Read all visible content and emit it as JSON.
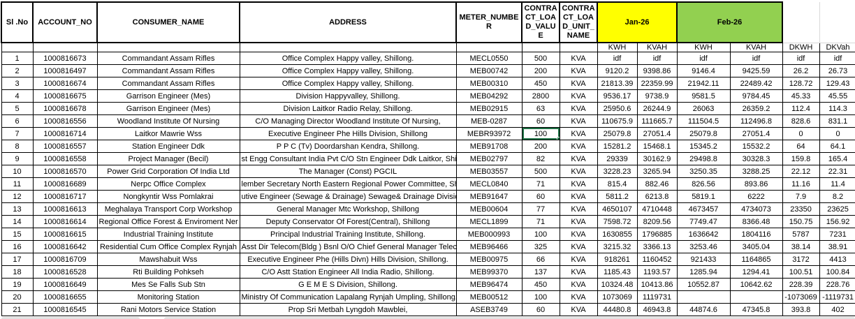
{
  "colors": {
    "jan_header_bg": "#FFFF00",
    "feb_header_bg": "#92D050",
    "selection_border": "#1E7145"
  },
  "selection": {
    "row_sl": "7",
    "field": "load"
  },
  "table": {
    "headers": {
      "sl_no": "Sl .No",
      "account_no": "ACCOUNT_NO",
      "consumer_name": "CONSUMER_NAME",
      "address": "ADDRESS",
      "meter_number": "METER_NUMBER",
      "contract_load_value": "CONTRACT_LOAD_VALUE",
      "contract_load_unit_name": "CONTRACT_LOAD_UNIT_NAME",
      "jan": "Jan-26",
      "feb": "Feb-26"
    },
    "subheaders": [
      "KWH",
      "KVAH",
      "KWH",
      "KVAH",
      "DKWH",
      "DKVah"
    ],
    "rows": [
      {
        "sl": "1",
        "account": "1000816673",
        "consumer": "Commandant Assam Rifles",
        "address": "Office Complex Happy valley, Shillong.",
        "meter": "MECL0550",
        "load": "500",
        "unit": "KVA",
        "jan_kwh": "idf",
        "jan_kvah": "idf",
        "feb_kwh": "idf",
        "feb_kvah": "idf",
        "dkwh": "idf",
        "dkvah": "idf"
      },
      {
        "sl": "2",
        "account": "1000816497",
        "consumer": "Commandant Assam Rifles",
        "address": "Office Complex Happy valley, Shillong.",
        "meter": "MEB00742",
        "load": "200",
        "unit": "KVA",
        "jan_kwh": "9120.2",
        "jan_kvah": "9398.86",
        "feb_kwh": "9146.4",
        "feb_kvah": "9425.59",
        "dkwh": "26.2",
        "dkvah": "26.73"
      },
      {
        "sl": "3",
        "account": "1000816674",
        "consumer": "Commandant Assam Rifles",
        "address": "Office Complex Happy valley, Shillong.",
        "meter": "MEB00310",
        "load": "450",
        "unit": "KVA",
        "jan_kwh": "21813.39",
        "jan_kvah": "22359.99",
        "feb_kwh": "21942.11",
        "feb_kvah": "22489.42",
        "dkwh": "128.72",
        "dkvah": "129.43"
      },
      {
        "sl": "4",
        "account": "1000816675",
        "consumer": "Garrison Engineer (Mes)",
        "address": "Division Happyvalley, Shillong.",
        "meter": "MEB04292",
        "load": "2800",
        "unit": "KVA",
        "jan_kwh": "9536.17",
        "jan_kvah": "9738.9",
        "feb_kwh": "9581.5",
        "feb_kvah": "9784.45",
        "dkwh": "45.33",
        "dkvah": "45.55"
      },
      {
        "sl": "5",
        "account": "1000816678",
        "consumer": "Garrison Engineer (Mes)",
        "address": "Division Laitkor Radio Relay, Shillong.",
        "meter": "MEB02915",
        "load": "63",
        "unit": "KVA",
        "jan_kwh": "25950.6",
        "jan_kvah": "26244.9",
        "feb_kwh": "26063",
        "feb_kvah": "26359.2",
        "dkwh": "112.4",
        "dkvah": "114.3"
      },
      {
        "sl": "6",
        "account": "1000816556",
        "consumer": "Woodland Institute Of Nursing",
        "address": "C/O Managing Director Woodland Institute Of Nursing,",
        "meter": "MEB-0287",
        "load": "60",
        "unit": "KVA",
        "jan_kwh": "110675.9",
        "jan_kvah": "111665.7",
        "feb_kwh": "111504.5",
        "feb_kvah": "112496.8",
        "dkwh": "828.6",
        "dkvah": "831.1"
      },
      {
        "sl": "7",
        "account": "1000816714",
        "consumer": "Laitkor Mawrie Wss",
        "address": "Executive Engineer Phe Hills Division, Shillong",
        "meter": "MEBR93972",
        "load": "100",
        "unit": "KVA",
        "jan_kwh": "25079.8",
        "jan_kvah": "27051.4",
        "feb_kwh": "25079.8",
        "feb_kvah": "27051.4",
        "dkwh": "0",
        "dkvah": "0"
      },
      {
        "sl": "8",
        "account": "1000816557",
        "consumer": "Station Engineer Ddk",
        "address": "P P C (Tv) Doordarshan Kendra, Shillong.",
        "meter": "MEB91708",
        "load": "200",
        "unit": "KVA",
        "jan_kwh": "15281.2",
        "jan_kvah": "15468.1",
        "feb_kwh": "15345.2",
        "feb_kvah": "15532.2",
        "dkwh": "64",
        "dkvah": "64.1"
      },
      {
        "sl": "9",
        "account": "1000816558",
        "consumer": "Project Manager (Becil)",
        "address": "st Engg Consultant India Pvt C/O Stn Engineer Ddk Laitkor, Shillong. #",
        "meter": "MEB02797",
        "load": "82",
        "unit": "KVA",
        "jan_kwh": "29339",
        "jan_kvah": "30162.9",
        "feb_kwh": "29498.8",
        "feb_kvah": "30328.3",
        "dkwh": "159.8",
        "dkvah": "165.4"
      },
      {
        "sl": "10",
        "account": "1000816570",
        "consumer": "Power Grid Corporation Of India Ltd",
        "address": "The Manager (Const) PGCIL",
        "meter": "MEB03557",
        "load": "500",
        "unit": "KVA",
        "jan_kwh": "3228.23",
        "jan_kvah": "3265.94",
        "feb_kwh": "3250.35",
        "feb_kvah": "3288.25",
        "dkwh": "22.12",
        "dkvah": "22.31"
      },
      {
        "sl": "11",
        "account": "1000816689",
        "consumer": "Nerpc Office Complex",
        "address": "lember Secretary North Eastern Regional Power Committee, Shillon",
        "meter": "MECL0840",
        "load": "71",
        "unit": "KVA",
        "jan_kwh": "815.4",
        "jan_kvah": "882.46",
        "feb_kwh": "826.56",
        "feb_kvah": "893.86",
        "dkwh": "11.16",
        "dkvah": "11.4"
      },
      {
        "sl": "12",
        "account": "1000816717",
        "consumer": "Nongkyntir Wss Pomlakrai",
        "address": "utive Engineer (Sewage & Drainage) Sewage& Drainage Division, Shi",
        "meter": "MEB91647",
        "load": "60",
        "unit": "KVA",
        "jan_kwh": "5811.2",
        "jan_kvah": "6213.8",
        "feb_kwh": "5819.1",
        "feb_kvah": "6222",
        "dkwh": "7.9",
        "dkvah": "8.2"
      },
      {
        "sl": "13",
        "account": "1000816613",
        "consumer": "Meghalaya Transport Corp Workshop",
        "address": "General Manager Mtc Workshop, Shillong",
        "meter": "MEB00604",
        "load": "77",
        "unit": "KVA",
        "jan_kwh": "4650107",
        "jan_kvah": "4710448",
        "feb_kwh": "4673457",
        "feb_kvah": "4734073",
        "dkwh": "23350",
        "dkvah": "23625"
      },
      {
        "sl": "14",
        "account": "1000816614",
        "consumer": "Regional Office Forest & Enviroment Ner",
        "address": "Deputy Conservator Of Forest(Central), Shillong",
        "meter": "MECL1899",
        "load": "71",
        "unit": "KVA",
        "jan_kwh": "7598.72",
        "jan_kvah": "8209.56",
        "feb_kwh": "7749.47",
        "feb_kvah": "8366.48",
        "dkwh": "150.75",
        "dkvah": "156.92"
      },
      {
        "sl": "15",
        "account": "1000816615",
        "consumer": "Industrial Training Institute",
        "address": "Principal Industrial Training Institute, Shillong.",
        "meter": "MEB000993",
        "load": "100",
        "unit": "KVA",
        "jan_kwh": "1630855",
        "jan_kvah": "1796885",
        "feb_kwh": "1636642",
        "feb_kvah": "1804116",
        "dkwh": "5787",
        "dkvah": "7231"
      },
      {
        "sl": "16",
        "account": "1000816642",
        "consumer": "Residential Cum Office Complex Rynjah",
        "address": "Asst Dir Telecom(Bldg ) Bsnl O/O Chief General Manager Telecom",
        "meter": "MEB96466",
        "load": "325",
        "unit": "KVA",
        "jan_kwh": "3215.32",
        "jan_kvah": "3366.13",
        "feb_kwh": "3253.46",
        "feb_kvah": "3405.04",
        "dkwh": "38.14",
        "dkvah": "38.91"
      },
      {
        "sl": "17",
        "account": "1000816709",
        "consumer": "Mawshabuit Wss",
        "address": "Executive Engineer Phe (Hills Divn) Hills Division, Shillong.",
        "meter": "MEB00975",
        "load": "66",
        "unit": "KVA",
        "jan_kwh": "918261",
        "jan_kvah": "1160452",
        "feb_kwh": "921433",
        "feb_kvah": "1164865",
        "dkwh": "3172",
        "dkvah": "4413"
      },
      {
        "sl": "18",
        "account": "1000816528",
        "consumer": "Rti Building Pohkseh",
        "address": "C/O Astt Station Engineer All India Radio, Shillong.",
        "meter": "MEB99370",
        "load": "137",
        "unit": "KVA",
        "jan_kwh": "1185.43",
        "jan_kvah": "1193.57",
        "feb_kwh": "1285.94",
        "feb_kvah": "1294.41",
        "dkwh": "100.51",
        "dkvah": "100.84"
      },
      {
        "sl": "19",
        "account": "1000816649",
        "consumer": "Mes Se Falls Sub Stn",
        "address": "G E M E S Division, Shillong.",
        "meter": "MEB96474",
        "load": "450",
        "unit": "KVA",
        "jan_kwh": "10324.48",
        "jan_kvah": "10413.86",
        "feb_kwh": "10552.87",
        "feb_kvah": "10642.62",
        "dkwh": "228.39",
        "dkvah": "228.76"
      },
      {
        "sl": "20",
        "account": "1000816655",
        "consumer": "Monitoring Station",
        "address": "Ministry Of Communication Lapalang Rynjah Umpling, Shillong.",
        "meter": "MEB00512",
        "load": "100",
        "unit": "KVA",
        "jan_kwh": "1073069",
        "jan_kvah": "1119731",
        "feb_kwh": "",
        "feb_kvah": "",
        "dkwh": "-1073069",
        "dkvah": "-1119731"
      },
      {
        "sl": "21",
        "account": "1000816545",
        "consumer": "Rani Motors Service Station",
        "address": "Prop Sri Metbah Lyngdoh Mawblei,",
        "meter": "ASEB3749",
        "load": "60",
        "unit": "KVA",
        "jan_kwh": "44480.8",
        "jan_kvah": "46943.8",
        "feb_kwh": "44874.6",
        "feb_kvah": "47345.8",
        "dkwh": "393.8",
        "dkvah": "402"
      }
    ]
  }
}
